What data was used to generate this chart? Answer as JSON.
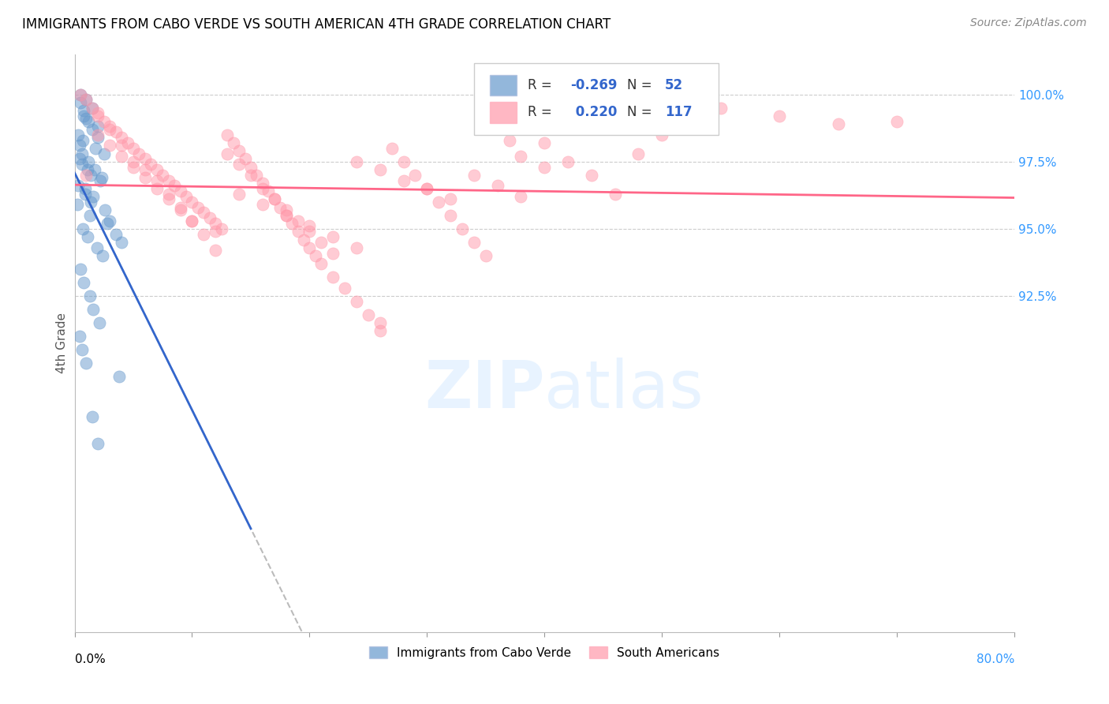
{
  "title": "IMMIGRANTS FROM CABO VERDE VS SOUTH AMERICAN 4TH GRADE CORRELATION CHART",
  "source": "Source: ZipAtlas.com",
  "ylabel": "4th Grade",
  "xmin": 0.0,
  "xmax": 80.0,
  "ymin": 80.0,
  "ymax": 101.5,
  "cabo_R": -0.269,
  "cabo_N": 52,
  "south_R": 0.22,
  "south_N": 117,
  "cabo_color": "#6699cc",
  "south_color": "#ff99aa",
  "cabo_line_color": "#3366cc",
  "south_line_color": "#ff6688",
  "legend_label_cabo": "Immigrants from Cabo Verde",
  "legend_label_south": "South Americans",
  "cabo_scatter_x": [
    0.5,
    1.0,
    1.5,
    0.8,
    1.2,
    2.0,
    0.3,
    0.7,
    1.8,
    2.5,
    0.4,
    0.6,
    1.1,
    1.4,
    2.2,
    0.9,
    1.6,
    0.2,
    1.3,
    2.8,
    3.5,
    4.0,
    0.5,
    0.8,
    1.0,
    1.5,
    2.0,
    0.4,
    0.6,
    1.2,
    1.7,
    2.3,
    0.3,
    0.9,
    1.4,
    2.6,
    3.0,
    0.7,
    1.1,
    1.9,
    2.4,
    0.5,
    0.8,
    1.3,
    1.6,
    2.1,
    0.4,
    0.6,
    1.0,
    3.8,
    1.5,
    2.0
  ],
  "cabo_scatter_y": [
    100.0,
    99.8,
    99.5,
    99.2,
    99.0,
    98.8,
    98.5,
    98.3,
    98.0,
    97.8,
    97.6,
    97.4,
    97.2,
    97.0,
    96.8,
    96.5,
    96.2,
    95.9,
    95.5,
    95.2,
    94.8,
    94.5,
    99.7,
    99.4,
    99.1,
    98.7,
    98.4,
    98.1,
    97.8,
    97.5,
    97.2,
    96.9,
    96.6,
    96.3,
    96.0,
    95.7,
    95.3,
    95.0,
    94.7,
    94.3,
    94.0,
    93.5,
    93.0,
    92.5,
    92.0,
    91.5,
    91.0,
    90.5,
    90.0,
    89.5,
    88.0,
    87.0
  ],
  "south_scatter_x": [
    0.5,
    1.0,
    1.5,
    2.0,
    2.5,
    3.0,
    3.5,
    4.0,
    4.5,
    5.0,
    5.5,
    6.0,
    6.5,
    7.0,
    7.5,
    8.0,
    8.5,
    9.0,
    9.5,
    10.0,
    10.5,
    11.0,
    11.5,
    12.0,
    12.5,
    13.0,
    13.5,
    14.0,
    14.5,
    15.0,
    15.5,
    16.0,
    16.5,
    17.0,
    17.5,
    18.0,
    18.5,
    19.0,
    19.5,
    20.0,
    20.5,
    21.0,
    22.0,
    23.0,
    24.0,
    25.0,
    26.0,
    27.0,
    28.0,
    29.0,
    30.0,
    31.0,
    32.0,
    33.0,
    34.0,
    35.0,
    36.0,
    37.0,
    38.0,
    40.0,
    42.0,
    44.0,
    46.0,
    48.0,
    50.0,
    55.0,
    60.0,
    65.0,
    70.0,
    2.0,
    3.0,
    4.0,
    5.0,
    6.0,
    7.0,
    8.0,
    9.0,
    10.0,
    11.0,
    12.0,
    13.0,
    14.0,
    15.0,
    16.0,
    17.0,
    18.0,
    19.0,
    20.0,
    21.0,
    22.0,
    24.0,
    26.0,
    28.0,
    30.0,
    32.0,
    34.0,
    36.0,
    38.0,
    40.0,
    1.0,
    2.0,
    3.0,
    4.0,
    5.0,
    6.0,
    7.0,
    8.0,
    9.0,
    10.0,
    12.0,
    14.0,
    16.0,
    18.0,
    20.0,
    22.0,
    24.0,
    26.0
  ],
  "south_scatter_y": [
    100.0,
    99.8,
    99.5,
    99.2,
    99.0,
    98.8,
    98.6,
    98.4,
    98.2,
    98.0,
    97.8,
    97.6,
    97.4,
    97.2,
    97.0,
    96.8,
    96.6,
    96.4,
    96.2,
    96.0,
    95.8,
    95.6,
    95.4,
    95.2,
    95.0,
    98.5,
    98.2,
    97.9,
    97.6,
    97.3,
    97.0,
    96.7,
    96.4,
    96.1,
    95.8,
    95.5,
    95.2,
    94.9,
    94.6,
    94.3,
    94.0,
    93.7,
    93.2,
    92.8,
    92.3,
    91.8,
    91.2,
    98.0,
    97.5,
    97.0,
    96.5,
    96.0,
    95.5,
    95.0,
    94.5,
    94.0,
    98.8,
    98.3,
    97.7,
    98.2,
    97.5,
    97.0,
    96.3,
    97.8,
    98.5,
    99.5,
    99.2,
    98.9,
    99.0,
    99.3,
    98.7,
    98.1,
    97.5,
    97.2,
    96.8,
    96.3,
    95.8,
    95.3,
    94.8,
    94.2,
    97.8,
    97.4,
    97.0,
    96.5,
    96.1,
    95.7,
    95.3,
    94.9,
    94.5,
    94.1,
    97.5,
    97.2,
    96.8,
    96.5,
    96.1,
    97.0,
    96.6,
    96.2,
    97.3,
    97.0,
    98.5,
    98.1,
    97.7,
    97.3,
    96.9,
    96.5,
    96.1,
    95.7,
    95.3,
    94.9,
    96.3,
    95.9,
    95.5,
    95.1,
    94.7,
    94.3,
    91.5
  ]
}
